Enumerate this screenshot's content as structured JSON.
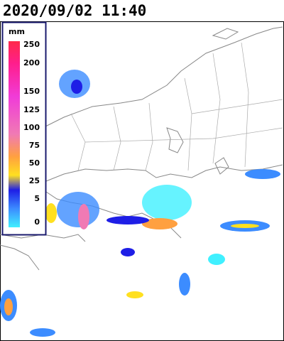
{
  "header": {
    "timestamp": "2020/09/02 11:40"
  },
  "legend": {
    "unit": "mm",
    "labels": [
      "250",
      "200",
      "150",
      "125",
      "100",
      "75",
      "50",
      "25",
      "5",
      "0"
    ]
  }
}
